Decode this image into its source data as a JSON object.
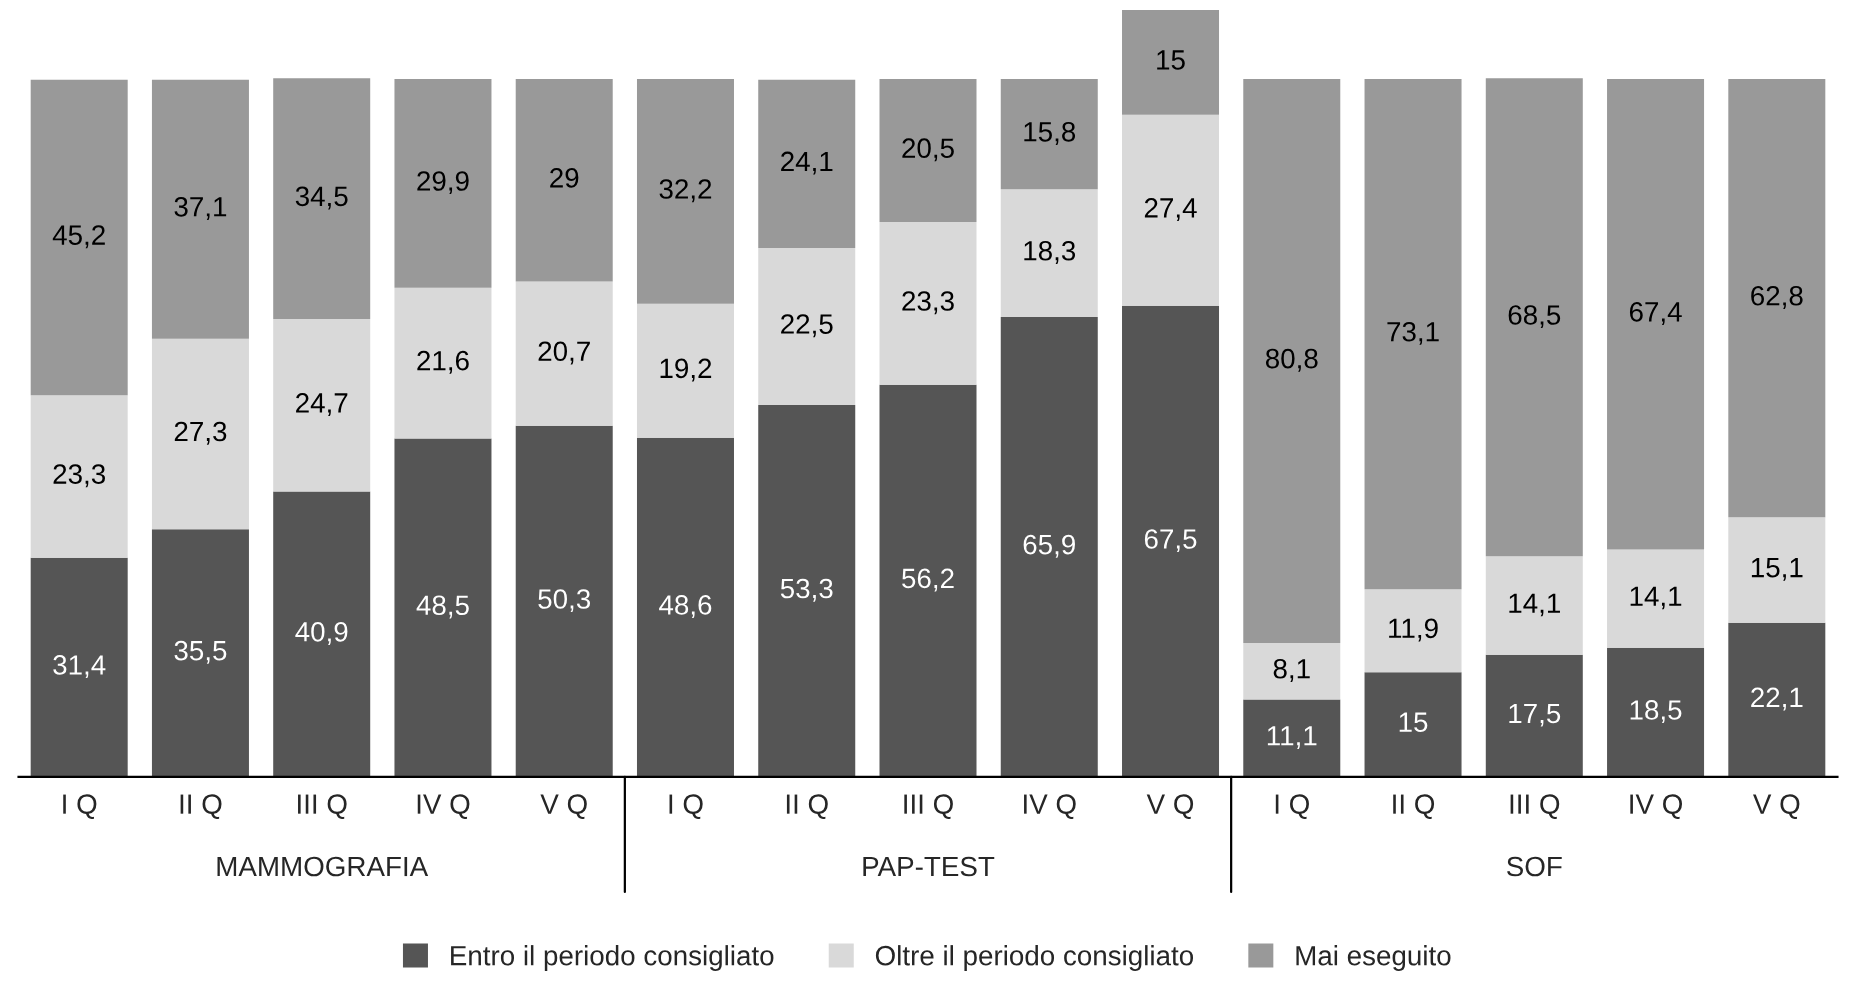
{
  "chart_data": {
    "type": "bar",
    "stacked": true,
    "categories": [
      "I Q",
      "II Q",
      "III Q",
      "IV Q",
      "V Q",
      "I Q",
      "II Q",
      "III Q",
      "IV Q",
      "V Q",
      "I Q",
      "II Q",
      "III Q",
      "IV Q",
      "V Q"
    ],
    "annotations": [
      "MAMMOGRAFIA",
      "PAP-TEST",
      "SOF"
    ],
    "series": [
      {
        "name": "Entro il periodo consigliato",
        "color": "#555555",
        "values": [
          31.4,
          35.5,
          40.9,
          48.5,
          50.3,
          48.6,
          53.3,
          56.2,
          65.9,
          67.5,
          11.1,
          15,
          17.5,
          18.5,
          22.1
        ],
        "value_labels": [
          "31,4",
          "35,5",
          "40,9",
          "48,5",
          "50,3",
          "48,6",
          "53,3",
          "56,2",
          "65,9",
          "67,5",
          "11,1",
          "15",
          "17,5",
          "18,5",
          "22,1"
        ]
      },
      {
        "name": "Oltre il periodo consigliato",
        "color": "#d9d9d9",
        "values": [
          23.3,
          27.3,
          24.7,
          21.6,
          20.7,
          19.2,
          22.5,
          23.3,
          18.3,
          27.4,
          8.1,
          11.9,
          14.1,
          14.1,
          15.1
        ],
        "value_labels": [
          "23,3",
          "27,3",
          "24,7",
          "21,6",
          "20,7",
          "19,2",
          "22,5",
          "23,3",
          "18,3",
          "27,4",
          "8,1",
          "11,9",
          "14,1",
          "14,1",
          "15,1"
        ]
      },
      {
        "name": "Mai eseguito",
        "color": "#999999",
        "values": [
          45.2,
          37.1,
          34.5,
          29.9,
          29,
          32.2,
          24.1,
          20.5,
          15.8,
          15,
          80.8,
          73.1,
          68.5,
          67.4,
          62.8
        ],
        "value_labels": [
          "45,2",
          "37,1",
          "34,5",
          "29,9",
          "29",
          "32,2",
          "24,1",
          "20,5",
          "15,8",
          "15",
          "80,8",
          "73,1",
          "68,5",
          "67,4",
          "62,8"
        ]
      }
    ],
    "legend": "bottom"
  }
}
